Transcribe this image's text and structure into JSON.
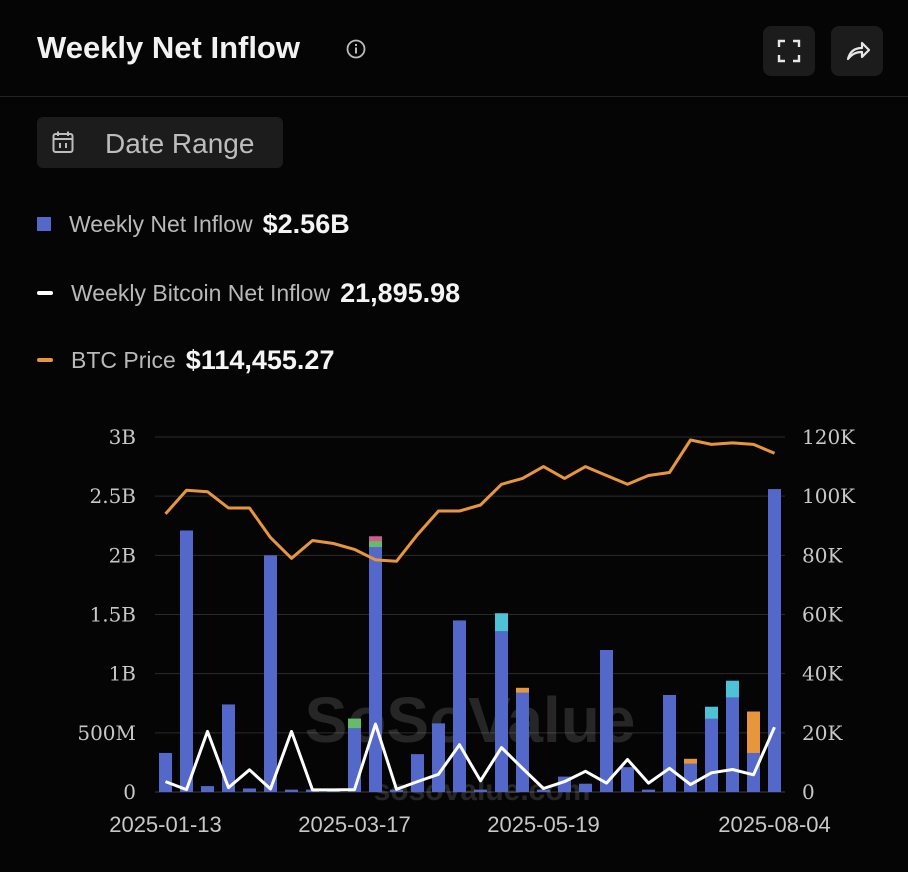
{
  "header": {
    "title": "Weekly Net Inflow",
    "info_icon": "info-circle-icon",
    "fullscreen_icon": "expand-icon",
    "share_icon": "share-arrow-icon"
  },
  "date_range": {
    "label": "Date Range",
    "icon": "calendar-icon"
  },
  "legend": [
    {
      "name": "Weekly Net Inflow",
      "value": "$2.56B",
      "color": "#5468c9"
    },
    {
      "name": "Weekly Bitcoin Net Inflow",
      "value": "21,895.98",
      "color": "#ffffff"
    },
    {
      "name": "BTC Price",
      "value": "$114,455.27",
      "color": "#e8963c"
    }
  ],
  "watermark": {
    "brand": "SoSoValue",
    "url": "sosovalue.com"
  },
  "colors": {
    "bar": "#5468c9",
    "bitcoin_line": "#ffffff",
    "price_line": "#e8963c",
    "segment_teal": "#4fc3d6",
    "segment_orange": "#e8963c",
    "segment_green": "#66bb6a",
    "segment_pink": "#d45c8a"
  },
  "chart_data": {
    "type": "bar",
    "x_tick_labels": [
      "2025-01-13",
      "2025-03-17",
      "2025-05-19",
      "2025-08-04"
    ],
    "y_left": {
      "ticks": [
        "0",
        "500M",
        "1B",
        "1.5B",
        "2B",
        "2.5B",
        "3B"
      ],
      "min": 0,
      "max": 3000000000
    },
    "y_right": {
      "ticks": [
        "0",
        "20K",
        "40K",
        "60K",
        "80K",
        "100K",
        "120K"
      ],
      "min": 0,
      "max": 120000
    },
    "grid": true,
    "weeks": [
      "2025-01-13",
      "2025-01-20",
      "2025-01-27",
      "2025-02-03",
      "2025-02-10",
      "2025-02-17",
      "2025-02-24",
      "2025-03-03",
      "2025-03-10",
      "2025-03-17",
      "2025-03-24",
      "2025-03-31",
      "2025-04-07",
      "2025-04-14",
      "2025-04-21",
      "2025-04-28",
      "2025-05-05",
      "2025-05-12",
      "2025-05-19",
      "2025-05-26",
      "2025-06-02",
      "2025-06-09",
      "2025-06-16",
      "2025-06-23",
      "2025-06-30",
      "2025-07-07",
      "2025-07-14",
      "2025-07-21",
      "2025-07-28",
      "2025-08-04"
    ],
    "series": [
      {
        "name": "Weekly Net Inflow",
        "axis": "left",
        "values": [
          330000000,
          2210000000,
          50000000,
          740000000,
          30000000,
          2000000000,
          20000000,
          20000000,
          20000000,
          620000000,
          2160000000,
          20000000,
          320000000,
          580000000,
          1450000000,
          20000000,
          1510000000,
          880000000,
          20000000,
          130000000,
          70000000,
          1200000000,
          210000000,
          20000000,
          820000000,
          280000000,
          720000000,
          940000000,
          680000000,
          2560000000
        ]
      },
      {
        "name": "Weekly Bitcoin Net Inflow",
        "axis": "right",
        "values": [
          3500,
          800,
          20500,
          1500,
          7500,
          1000,
          20500,
          700,
          700,
          800,
          23000,
          900,
          3500,
          6000,
          16000,
          3800,
          15000,
          8000,
          1200,
          3500,
          7000,
          3000,
          11000,
          3000,
          8000,
          2500,
          6500,
          7600,
          5800,
          21900
        ]
      },
      {
        "name": "BTC Price",
        "axis": "right",
        "values": [
          94000,
          102000,
          101500,
          96000,
          96000,
          86000,
          79000,
          85000,
          84000,
          82000,
          78500,
          78000,
          87000,
          95000,
          95000,
          97000,
          104000,
          106000,
          110000,
          106000,
          110000,
          107000,
          104000,
          107000,
          108000,
          119000,
          117500,
          118000,
          117500,
          114500
        ]
      }
    ]
  }
}
